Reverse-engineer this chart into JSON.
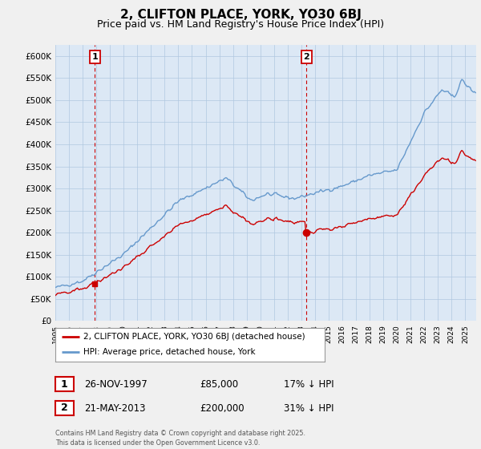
{
  "title": "2, CLIFTON PLACE, YORK, YO30 6BJ",
  "subtitle": "Price paid vs. HM Land Registry's House Price Index (HPI)",
  "ylim": [
    0,
    625000
  ],
  "yticks": [
    0,
    50000,
    100000,
    150000,
    200000,
    250000,
    300000,
    350000,
    400000,
    450000,
    500000,
    550000,
    600000
  ],
  "xlim_start": 1995.0,
  "xlim_end": 2025.8,
  "xticks": [
    1995,
    1996,
    1997,
    1998,
    1999,
    2000,
    2001,
    2002,
    2003,
    2004,
    2005,
    2006,
    2007,
    2008,
    2009,
    2010,
    2011,
    2012,
    2013,
    2014,
    2015,
    2016,
    2017,
    2018,
    2019,
    2020,
    2021,
    2022,
    2023,
    2024,
    2025
  ],
  "sale1_x": 1997.9,
  "sale1_y": 85000,
  "sale2_x": 2013.38,
  "sale2_y": 200000,
  "sale1_label": "1",
  "sale2_label": "2",
  "vline_color": "#cc0000",
  "hpi_line_color": "#6699cc",
  "price_line_color": "#cc0000",
  "legend_label_price": "2, CLIFTON PLACE, YORK, YO30 6BJ (detached house)",
  "legend_label_hpi": "HPI: Average price, detached house, York",
  "table_row1_num": "1",
  "table_row1_date": "26-NOV-1997",
  "table_row1_price": "£85,000",
  "table_row1_hpi": "17% ↓ HPI",
  "table_row2_num": "2",
  "table_row2_date": "21-MAY-2013",
  "table_row2_price": "£200,000",
  "table_row2_hpi": "31% ↓ HPI",
  "footnote": "Contains HM Land Registry data © Crown copyright and database right 2025.\nThis data is licensed under the Open Government Licence v3.0.",
  "bg_color": "#f0f0f0",
  "plot_bg_color": "#dce8f5",
  "grid_color": "#b0c8e0",
  "title_fontsize": 11,
  "subtitle_fontsize": 9
}
